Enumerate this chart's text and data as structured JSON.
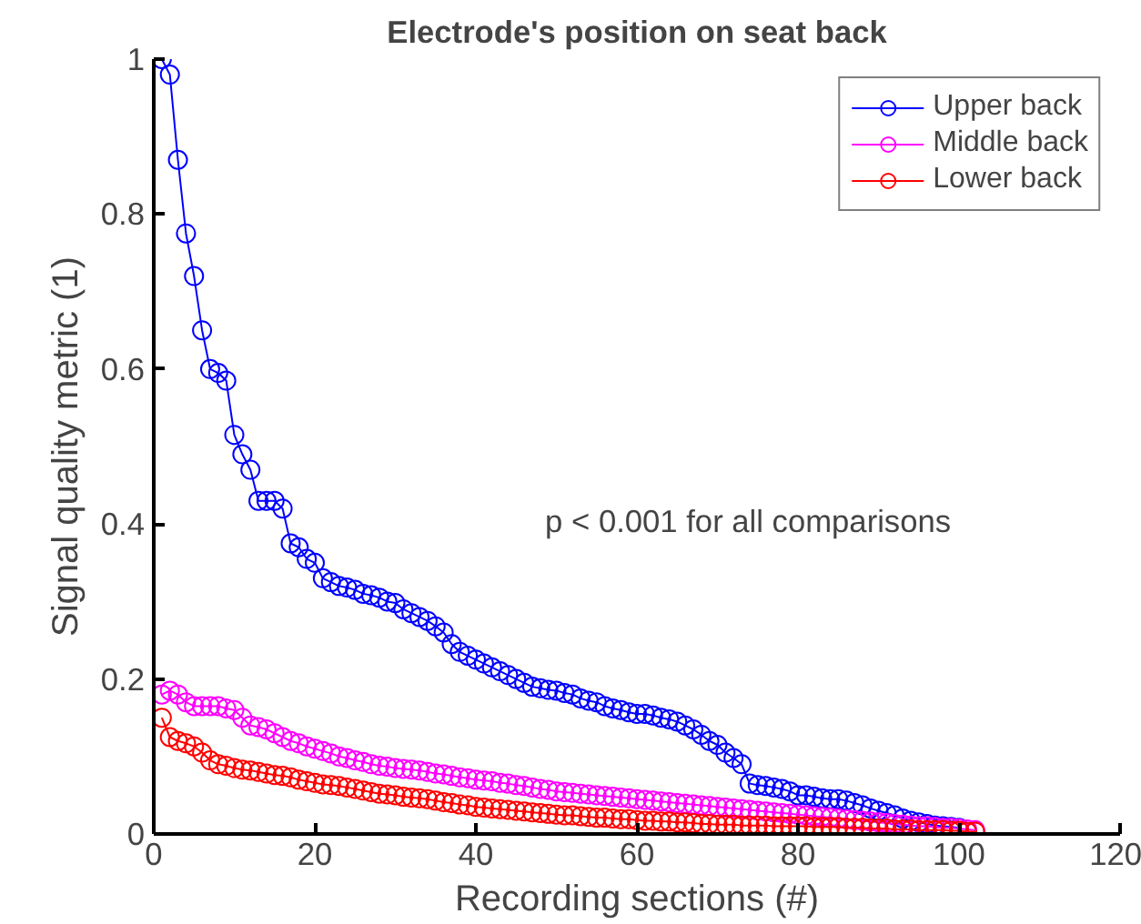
{
  "chart_data": {
    "type": "line",
    "title": "Electrode's position on seat back",
    "xlabel": "Recording sections (#)",
    "ylabel": "Signal quality metric (1)",
    "annotations": [
      "p < 0.001 for all comparisons"
    ],
    "x": [
      1,
      2,
      3,
      4,
      5,
      6,
      7,
      8,
      9,
      10,
      11,
      12,
      13,
      14,
      15,
      16,
      17,
      18,
      19,
      20,
      21,
      22,
      23,
      24,
      25,
      26,
      27,
      28,
      29,
      30,
      31,
      32,
      33,
      34,
      35,
      36,
      37,
      38,
      39,
      40,
      41,
      42,
      43,
      44,
      45,
      46,
      47,
      48,
      49,
      50,
      51,
      52,
      53,
      54,
      55,
      56,
      57,
      58,
      59,
      60,
      61,
      62,
      63,
      64,
      65,
      66,
      67,
      68,
      69,
      70,
      71,
      72,
      73,
      74,
      75,
      76,
      77,
      78,
      79,
      80,
      81,
      82,
      83,
      84,
      85,
      86,
      87,
      88,
      89,
      90,
      91,
      92,
      93,
      94,
      95,
      96,
      97,
      98,
      99,
      100,
      101,
      102
    ],
    "series": [
      {
        "name": "Upper back",
        "color": "#0000ff",
        "values": [
          1.0,
          0.98,
          0.87,
          0.775,
          0.72,
          0.65,
          0.6,
          0.595,
          0.585,
          0.515,
          0.49,
          0.47,
          0.43,
          0.43,
          0.43,
          0.42,
          0.375,
          0.37,
          0.355,
          0.35,
          0.33,
          0.325,
          0.32,
          0.318,
          0.315,
          0.31,
          0.308,
          0.305,
          0.3,
          0.298,
          0.29,
          0.285,
          0.28,
          0.275,
          0.268,
          0.26,
          0.245,
          0.235,
          0.23,
          0.225,
          0.22,
          0.215,
          0.21,
          0.205,
          0.2,
          0.195,
          0.19,
          0.188,
          0.186,
          0.185,
          0.182,
          0.18,
          0.175,
          0.172,
          0.17,
          0.165,
          0.162,
          0.16,
          0.157,
          0.155,
          0.155,
          0.153,
          0.15,
          0.148,
          0.145,
          0.14,
          0.135,
          0.128,
          0.12,
          0.115,
          0.105,
          0.098,
          0.09,
          0.065,
          0.063,
          0.062,
          0.06,
          0.058,
          0.055,
          0.05,
          0.05,
          0.048,
          0.046,
          0.045,
          0.045,
          0.043,
          0.04,
          0.037,
          0.033,
          0.03,
          0.027,
          0.024,
          0.02,
          0.017,
          0.015,
          0.013,
          0.011,
          0.01,
          0.009,
          0.008,
          null,
          null
        ]
      },
      {
        "name": "Middle back",
        "color": "#ff00ff",
        "values": [
          0.18,
          0.185,
          0.18,
          0.17,
          0.165,
          0.165,
          0.165,
          0.165,
          0.162,
          0.16,
          0.15,
          0.14,
          0.138,
          0.135,
          0.13,
          0.125,
          0.12,
          0.117,
          0.113,
          0.11,
          0.107,
          0.104,
          0.1,
          0.098,
          0.095,
          0.093,
          0.09,
          0.088,
          0.087,
          0.085,
          0.084,
          0.083,
          0.082,
          0.08,
          0.078,
          0.077,
          0.075,
          0.073,
          0.072,
          0.07,
          0.069,
          0.068,
          0.066,
          0.065,
          0.063,
          0.062,
          0.06,
          0.058,
          0.057,
          0.055,
          0.054,
          0.053,
          0.052,
          0.051,
          0.05,
          0.049,
          0.048,
          0.047,
          0.046,
          0.045,
          0.044,
          0.043,
          0.042,
          0.041,
          0.04,
          0.039,
          0.038,
          0.037,
          0.036,
          0.035,
          0.034,
          0.033,
          0.032,
          0.031,
          0.03,
          0.029,
          0.028,
          0.027,
          0.026,
          0.025,
          0.024,
          0.023,
          0.022,
          0.021,
          0.02,
          0.019,
          0.018,
          0.017,
          0.016,
          0.015,
          0.014,
          0.013,
          0.012,
          0.011,
          0.01,
          0.01,
          0.009,
          0.008,
          0.008,
          0.007,
          0.006,
          0.005
        ]
      },
      {
        "name": "Lower back",
        "color": "#ff0000",
        "values": [
          0.15,
          0.125,
          0.12,
          0.117,
          0.113,
          0.105,
          0.095,
          0.09,
          0.088,
          0.085,
          0.083,
          0.082,
          0.08,
          0.078,
          0.076,
          0.075,
          0.073,
          0.07,
          0.068,
          0.066,
          0.064,
          0.063,
          0.062,
          0.06,
          0.058,
          0.056,
          0.054,
          0.052,
          0.051,
          0.05,
          0.048,
          0.047,
          0.046,
          0.045,
          0.043,
          0.041,
          0.04,
          0.038,
          0.037,
          0.035,
          0.034,
          0.033,
          0.032,
          0.031,
          0.03,
          0.029,
          0.028,
          0.027,
          0.026,
          0.025,
          0.024,
          0.024,
          0.023,
          0.022,
          0.021,
          0.021,
          0.02,
          0.019,
          0.019,
          0.018,
          0.017,
          0.017,
          0.016,
          0.016,
          0.015,
          0.015,
          0.014,
          0.013,
          0.013,
          0.012,
          0.012,
          0.012,
          0.011,
          0.011,
          0.011,
          0.011,
          0.01,
          0.01,
          0.01,
          0.01,
          0.01,
          0.009,
          0.009,
          0.009,
          0.009,
          0.008,
          0.008,
          0.008,
          0.007,
          0.007,
          0.007,
          0.006,
          0.006,
          0.006,
          0.005,
          0.005,
          0.005,
          0.005,
          0.004,
          0.004,
          0.003,
          0.003
        ]
      }
    ],
    "xlim": [
      0,
      120
    ],
    "xticks": [
      0,
      20,
      40,
      60,
      80,
      100,
      120
    ],
    "ylim": [
      0,
      1
    ],
    "yticks": [
      0,
      0.2,
      0.4,
      0.6,
      0.8,
      1
    ],
    "grid": false,
    "legend": "top right",
    "marker": "circle",
    "line_style": "solid"
  }
}
